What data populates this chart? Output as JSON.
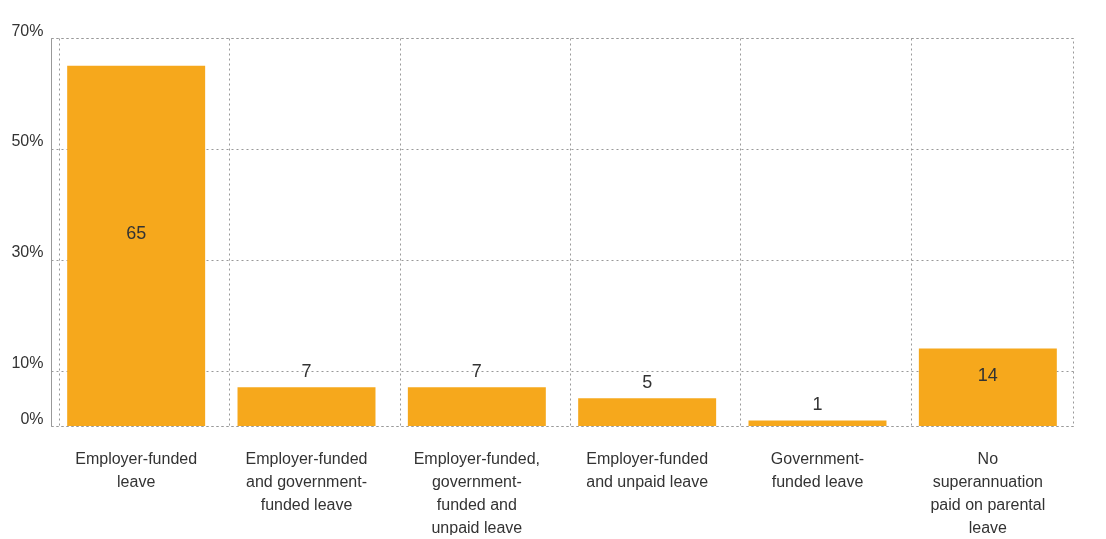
{
  "chart_data": {
    "type": "bar",
    "categories": [
      "Employer-funded leave",
      "Employer-funded and government-funded leave",
      "Employer-funded, government-funded and unpaid leave",
      "Employer-funded and unpaid leave",
      "Government-funded leave",
      "No superannuation paid on parental leave"
    ],
    "values": [
      65,
      7,
      7,
      5,
      1,
      14
    ],
    "color": "#f6a81c",
    "ylim": [
      0,
      70
    ],
    "yticks": [
      {
        "value": 0,
        "label": "0%"
      },
      {
        "value": 10,
        "label": "10%"
      },
      {
        "value": 30,
        "label": "30%"
      },
      {
        "value": 50,
        "label": "50%"
      },
      {
        "value": 70,
        "label": "70%"
      }
    ],
    "grid": true,
    "data_labels": true
  }
}
